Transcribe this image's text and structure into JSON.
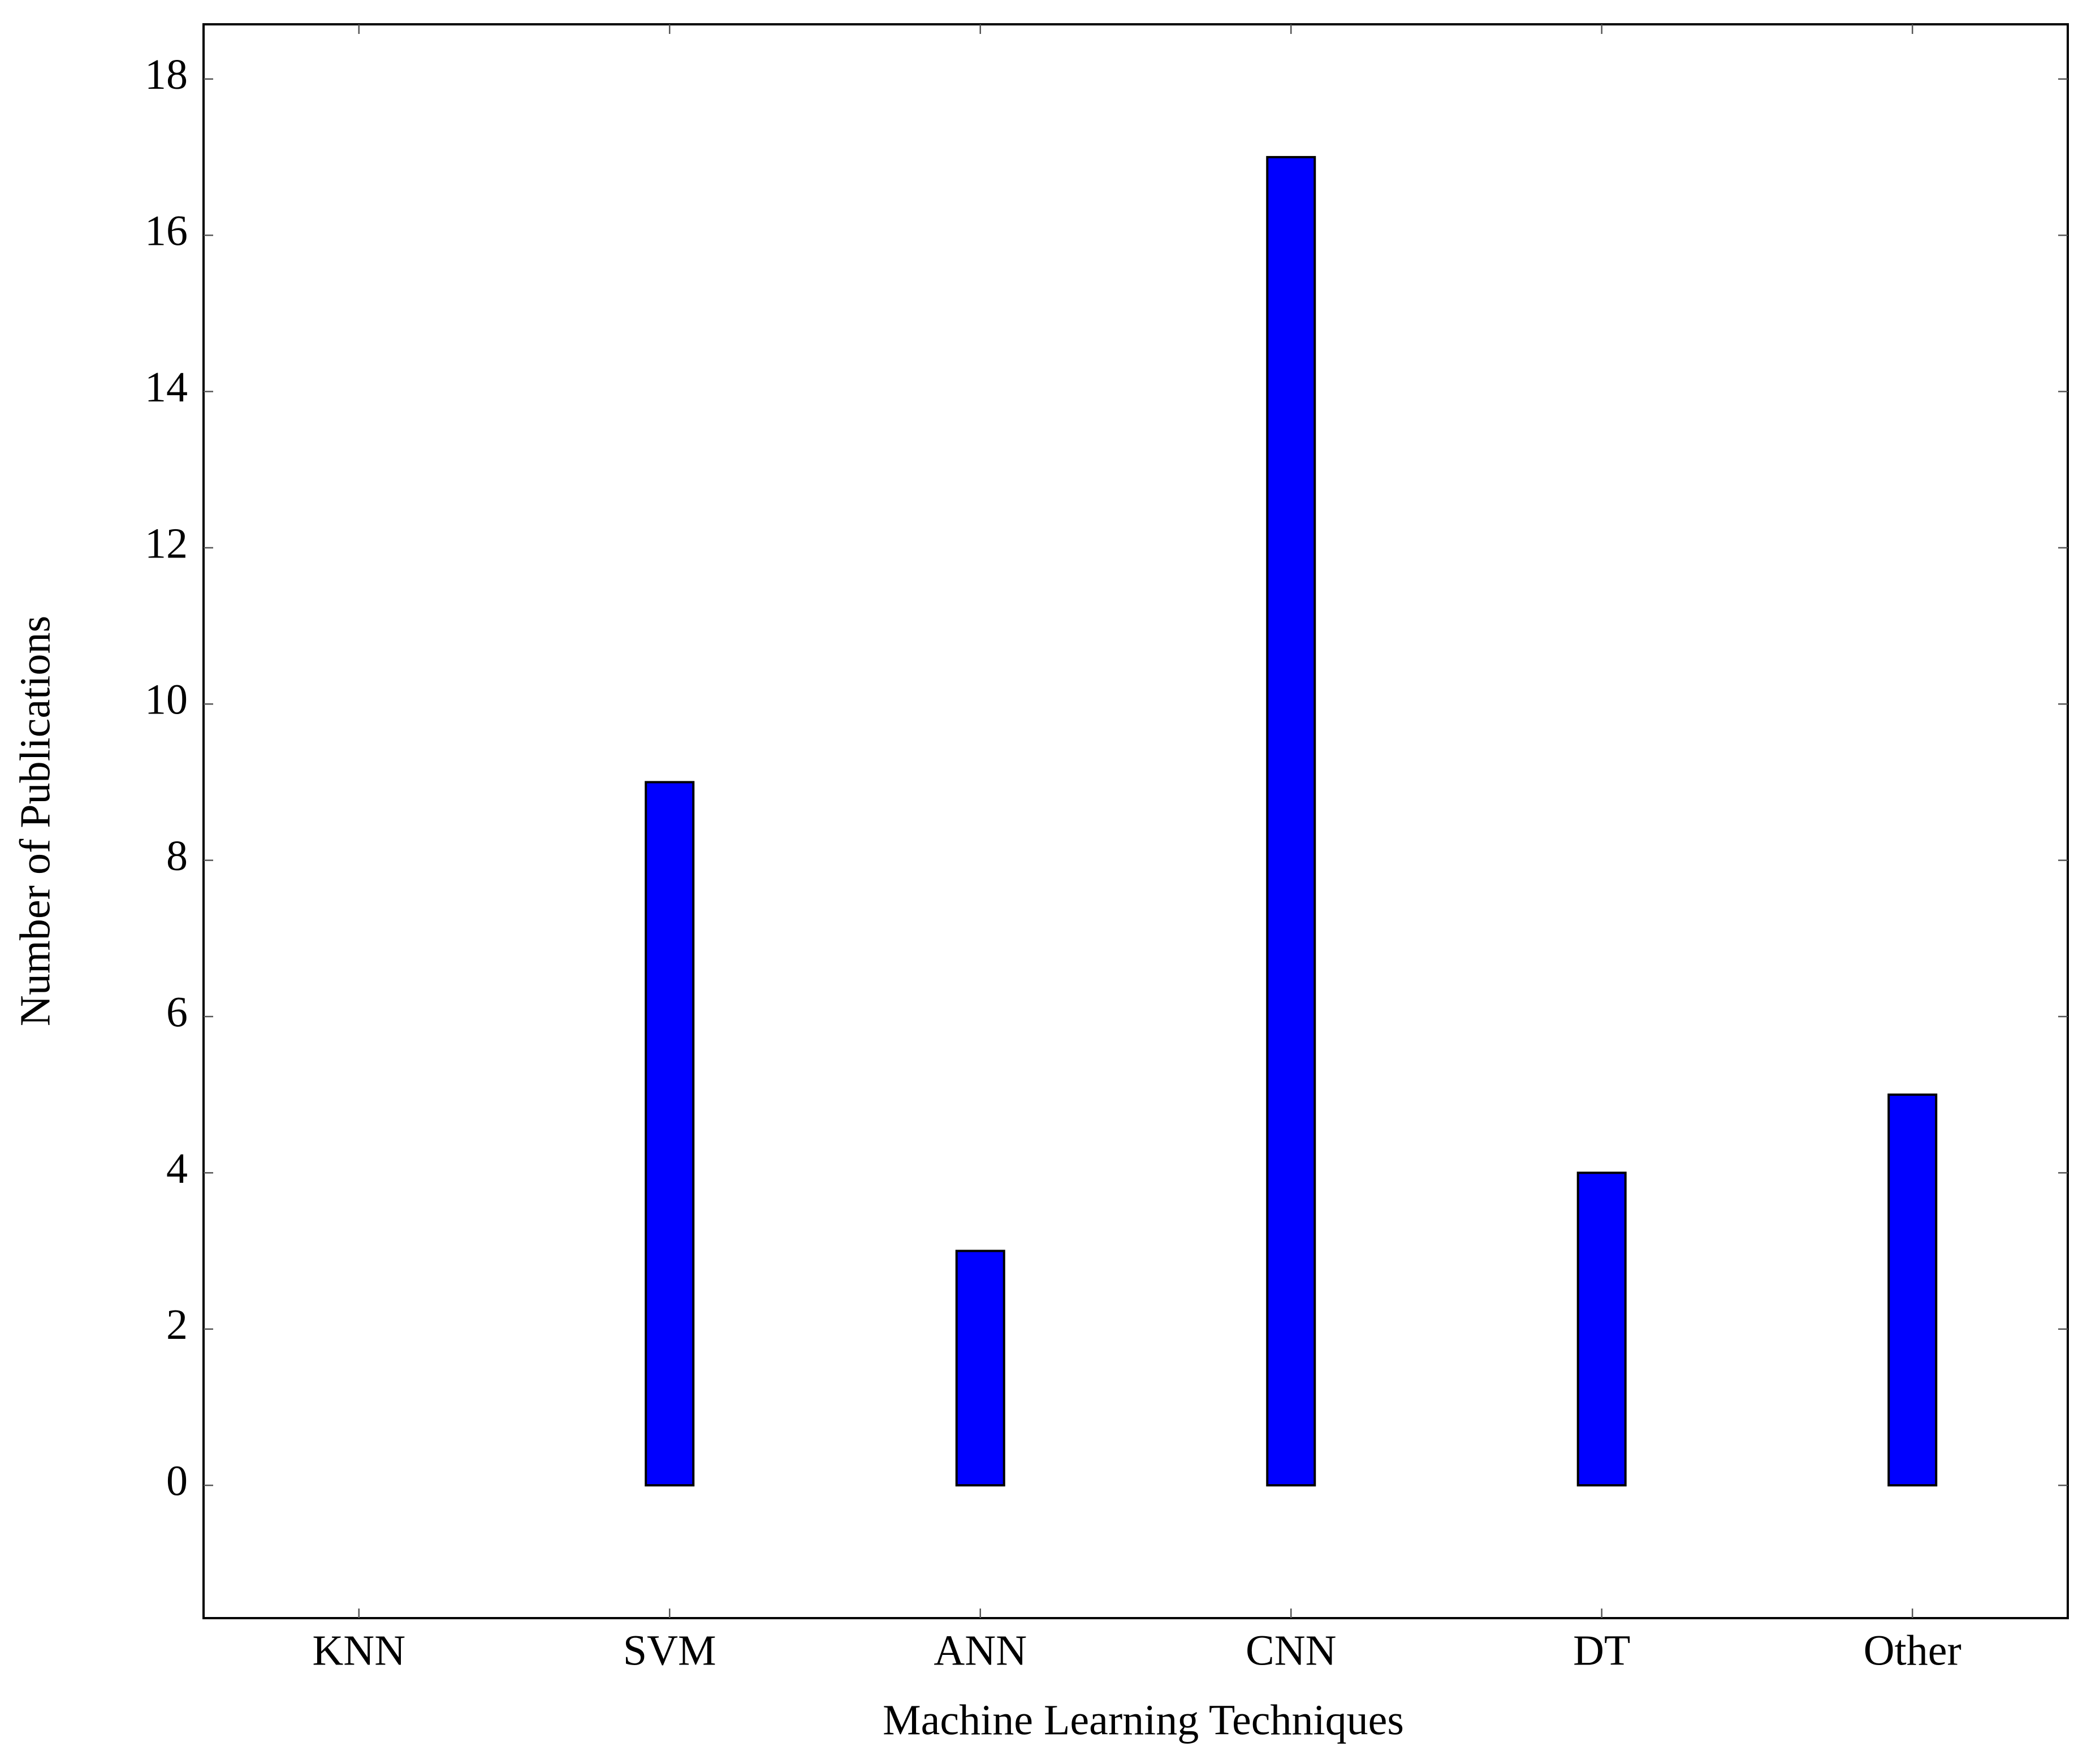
{
  "chart_data": {
    "type": "bar",
    "x_label": "Machine Learning Techniques",
    "y_label": "Number of Publications",
    "categories": [
      "KNN",
      "SVM",
      "ANN",
      "CNN",
      "DT",
      "Other"
    ],
    "values": [
      0,
      9,
      3,
      17,
      4,
      5
    ],
    "color": "#0000ff",
    "ylim": [
      -1.7,
      18.7
    ],
    "yticks": [
      0,
      2,
      4,
      6,
      8,
      10,
      12,
      14,
      16,
      18
    ],
    "grid": false
  }
}
